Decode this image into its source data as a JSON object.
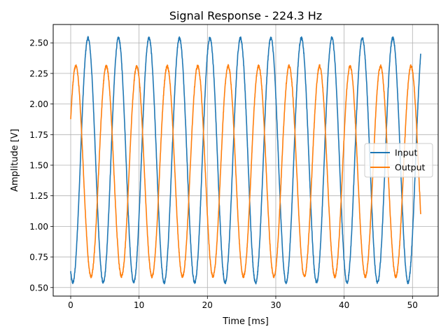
{
  "chart_data": {
    "type": "line",
    "title": "Signal Response - 224.3 Hz",
    "xlabel": "Time [ms]",
    "ylabel": "Amplitude [V]",
    "xlim": [
      -2.56,
      53.76
    ],
    "ylim": [
      0.43,
      2.65
    ],
    "xticks": [
      0,
      10,
      20,
      30,
      40,
      50
    ],
    "xtick_labels": [
      "0",
      "10",
      "20",
      "30",
      "40",
      "50"
    ],
    "yticks": [
      0.5,
      0.75,
      1.0,
      1.25,
      1.5,
      1.75,
      2.0,
      2.25,
      2.5
    ],
    "ytick_labels": [
      "0.50",
      "0.75",
      "1.00",
      "1.25",
      "1.50",
      "1.75",
      "2.00",
      "2.25",
      "2.50"
    ],
    "grid": true,
    "legend_position": "center-right",
    "frequency_hz": 224.3,
    "t_range_ms": [
      0,
      51.2
    ],
    "series": [
      {
        "name": "Input",
        "color": "#1f77b4",
        "waveform": "sine",
        "offset": 1.54,
        "amplitude": 1.0,
        "phase_rad": -2.0,
        "noise": 0.012
      },
      {
        "name": "Output",
        "color": "#ff7f0e",
        "waveform": "sine",
        "offset": 1.45,
        "amplitude": 0.86,
        "phase_rad": 0.52,
        "noise": 0.012
      }
    ]
  }
}
